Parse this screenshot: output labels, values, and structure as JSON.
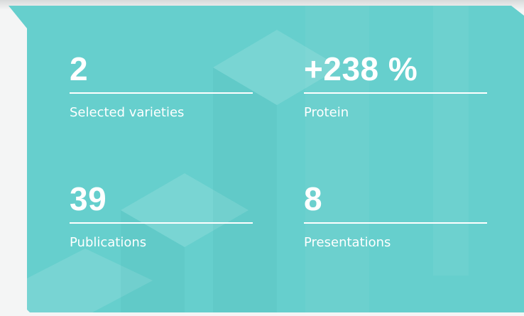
{
  "stats": [
    {
      "value": "2",
      "label": "Selected varieties"
    },
    {
      "value": "+238 %",
      "label": "Protein"
    },
    {
      "value": "39",
      "label": "Publications"
    },
    {
      "value": "8",
      "label": "Presentations"
    }
  ]
}
